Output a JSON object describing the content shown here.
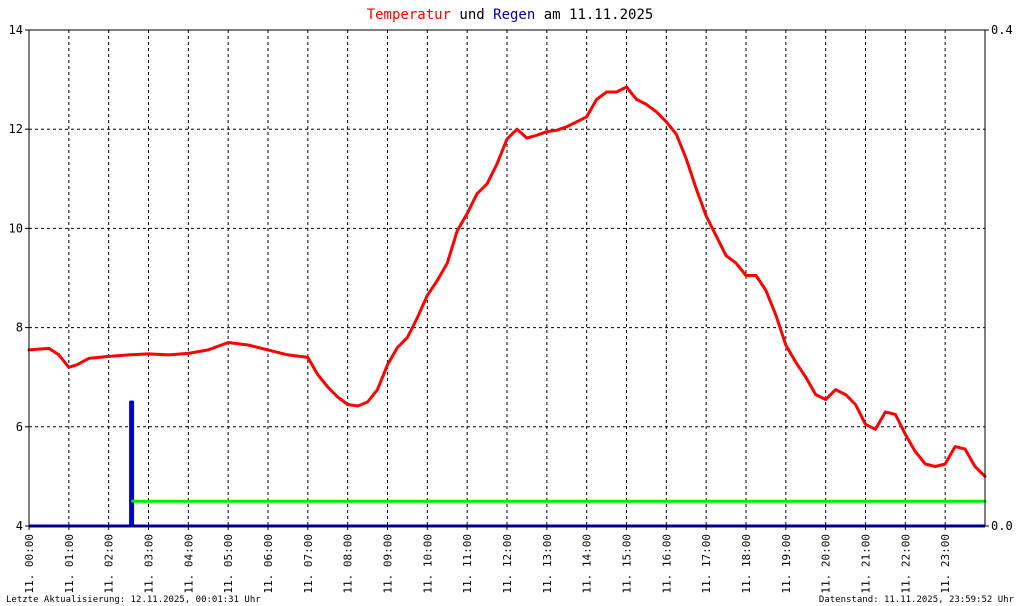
{
  "title": {
    "part1": "Temperatur",
    "part2": " und ",
    "part3": "Regen",
    "part4": " am 11.11.2025"
  },
  "footer": {
    "left": "Letzte Aktualisierung: 12.11.2025, 00:01:31 Uhr",
    "right": "Datenstand: 11.11.2025, 23:59:52 Uhr"
  },
  "colors": {
    "temperature": "#ff0000",
    "rain": "#0000cc",
    "rain_total": "#00ee00",
    "title_temp": "#ff0000",
    "title_rain": "#000099"
  },
  "chart_data": {
    "type": "line",
    "title": "Temperatur und Regen am 11.11.2025",
    "x_unit": "hours",
    "x_range": [
      0,
      24
    ],
    "x_ticks": [
      {
        "h": 0,
        "label": "11. 00:00"
      },
      {
        "h": 1,
        "label": "11. 01:00"
      },
      {
        "h": 2,
        "label": "11. 02:00"
      },
      {
        "h": 3,
        "label": "11. 03:00"
      },
      {
        "h": 4,
        "label": "11. 04:00"
      },
      {
        "h": 5,
        "label": "11. 05:00"
      },
      {
        "h": 6,
        "label": "11. 06:00"
      },
      {
        "h": 7,
        "label": "11. 07:00"
      },
      {
        "h": 8,
        "label": "11. 08:00"
      },
      {
        "h": 9,
        "label": "11. 09:00"
      },
      {
        "h": 10,
        "label": "11. 10:00"
      },
      {
        "h": 11,
        "label": "11. 11:00"
      },
      {
        "h": 12,
        "label": "11. 12:00"
      },
      {
        "h": 13,
        "label": "11. 13:00"
      },
      {
        "h": 14,
        "label": "11. 14:00"
      },
      {
        "h": 15,
        "label": "11. 15:00"
      },
      {
        "h": 16,
        "label": "11. 16:00"
      },
      {
        "h": 17,
        "label": "11. 17:00"
      },
      {
        "h": 18,
        "label": "11. 18:00"
      },
      {
        "h": 19,
        "label": "11. 19:00"
      },
      {
        "h": 20,
        "label": "11. 20:00"
      },
      {
        "h": 21,
        "label": "11. 21:00"
      },
      {
        "h": 22,
        "label": "11. 22:00"
      },
      {
        "h": 23,
        "label": "11. 23:00"
      }
    ],
    "y_left": {
      "range": [
        4,
        14
      ],
      "ticks": [
        "4",
        "6",
        "8",
        "10",
        "12",
        "14"
      ]
    },
    "y_right": {
      "range": [
        0,
        0.4
      ],
      "ticks": [
        {
          "v": 0,
          "label": "0.0"
        },
        {
          "v": 0.4,
          "label": "0.4"
        }
      ]
    },
    "grid": true,
    "series": [
      {
        "name": "Temperatur",
        "axis": "left",
        "color": "#ff0000",
        "points": [
          [
            0,
            7.55
          ],
          [
            0.5,
            7.58
          ],
          [
            0.75,
            7.45
          ],
          [
            1.0,
            7.2
          ],
          [
            1.2,
            7.25
          ],
          [
            1.5,
            7.38
          ],
          [
            2.0,
            7.42
          ],
          [
            2.5,
            7.45
          ],
          [
            3.0,
            7.47
          ],
          [
            3.5,
            7.45
          ],
          [
            4.0,
            7.48
          ],
          [
            4.5,
            7.55
          ],
          [
            5.0,
            7.7
          ],
          [
            5.5,
            7.65
          ],
          [
            6.0,
            7.55
          ],
          [
            6.5,
            7.45
          ],
          [
            7.0,
            7.4
          ],
          [
            7.25,
            7.05
          ],
          [
            7.5,
            6.8
          ],
          [
            7.75,
            6.6
          ],
          [
            8.0,
            6.45
          ],
          [
            8.25,
            6.42
          ],
          [
            8.5,
            6.5
          ],
          [
            8.75,
            6.75
          ],
          [
            9.0,
            7.25
          ],
          [
            9.25,
            7.6
          ],
          [
            9.5,
            7.8
          ],
          [
            9.75,
            8.2
          ],
          [
            10.0,
            8.65
          ],
          [
            10.25,
            8.95
          ],
          [
            10.5,
            9.3
          ],
          [
            10.75,
            9.95
          ],
          [
            11.0,
            10.3
          ],
          [
            11.25,
            10.7
          ],
          [
            11.5,
            10.9
          ],
          [
            11.75,
            11.3
          ],
          [
            12.0,
            11.8
          ],
          [
            12.25,
            12.0
          ],
          [
            12.5,
            11.82
          ],
          [
            12.75,
            11.88
          ],
          [
            13.0,
            11.95
          ],
          [
            13.25,
            11.98
          ],
          [
            13.5,
            12.05
          ],
          [
            13.75,
            12.15
          ],
          [
            14.0,
            12.25
          ],
          [
            14.25,
            12.6
          ],
          [
            14.5,
            12.75
          ],
          [
            14.75,
            12.75
          ],
          [
            15.0,
            12.85
          ],
          [
            15.25,
            12.6
          ],
          [
            15.5,
            12.5
          ],
          [
            15.75,
            12.35
          ],
          [
            16.0,
            12.15
          ],
          [
            16.25,
            11.9
          ],
          [
            16.5,
            11.4
          ],
          [
            16.75,
            10.8
          ],
          [
            17.0,
            10.25
          ],
          [
            17.25,
            9.85
          ],
          [
            17.5,
            9.45
          ],
          [
            17.75,
            9.3
          ],
          [
            18.0,
            9.05
          ],
          [
            18.25,
            9.05
          ],
          [
            18.5,
            8.75
          ],
          [
            18.75,
            8.25
          ],
          [
            19.0,
            7.65
          ],
          [
            19.25,
            7.3
          ],
          [
            19.5,
            7.0
          ],
          [
            19.75,
            6.65
          ],
          [
            20.0,
            6.55
          ],
          [
            20.25,
            6.75
          ],
          [
            20.5,
            6.65
          ],
          [
            20.75,
            6.45
          ],
          [
            21.0,
            6.05
          ],
          [
            21.25,
            5.95
          ],
          [
            21.5,
            6.3
          ],
          [
            21.75,
            6.25
          ],
          [
            22.0,
            5.85
          ],
          [
            22.25,
            5.5
          ],
          [
            22.5,
            5.25
          ],
          [
            22.75,
            5.2
          ],
          [
            23.0,
            5.25
          ],
          [
            23.25,
            5.6
          ],
          [
            23.5,
            5.55
          ],
          [
            23.75,
            5.2
          ],
          [
            24.0,
            5.0
          ]
        ]
      },
      {
        "name": "Regen",
        "axis": "right",
        "color": "#0000cc",
        "points": [
          [
            2.55,
            0.0
          ],
          [
            2.55,
            0.1
          ],
          [
            2.6,
            0.1
          ],
          [
            2.6,
            0.0
          ]
        ]
      },
      {
        "name": "Regensumme",
        "axis": "right",
        "color": "#00ee00",
        "points": [
          [
            2.6,
            0.02
          ],
          [
            24.0,
            0.02
          ]
        ]
      }
    ]
  }
}
